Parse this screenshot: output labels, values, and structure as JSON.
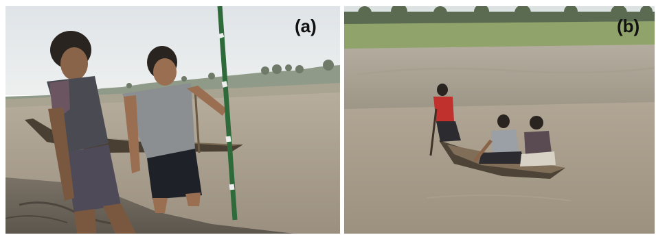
{
  "panels": [
    {
      "label": "(a)"
    },
    {
      "label": "(b)"
    }
  ],
  "colors": {
    "sky": "#e9ecee",
    "water": "#a39886",
    "mud": "#6e675c",
    "grass": "#8fa36a"
  }
}
